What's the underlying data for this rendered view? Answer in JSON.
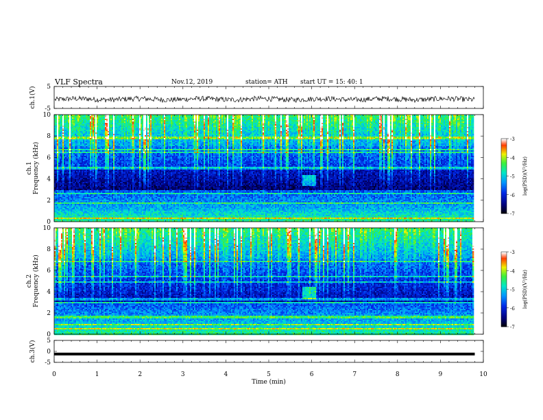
{
  "header": {
    "title": "VLF  Spectra",
    "date": "Nov.12, 2019",
    "station": "station= ATH",
    "start": "start  UT  =   15: 40: 1"
  },
  "chart_data": [
    {
      "type": "line",
      "panel": "ch1-waveform",
      "ylabel": "ch.1(V)",
      "ylim": [
        -5,
        5
      ],
      "yticks": [
        "5",
        "-5"
      ],
      "xlim": [
        0,
        10
      ],
      "series": [
        {
          "values_description_free": true,
          "mean": -0.8,
          "amplitude": 1.2
        }
      ]
    },
    {
      "type": "heatmap",
      "panel": "ch1-spectrogram",
      "ylabel": "ch.1\nFrequency  (kHz)",
      "ylim": [
        0,
        10
      ],
      "yticks": [
        "0",
        "2",
        "4",
        "6",
        "8",
        "10"
      ],
      "xlim": [
        0,
        10
      ],
      "data_extent_min": 9.8,
      "colorbar": {
        "label": "log(PSD)(V²/Hz)",
        "range": [
          -7,
          -3
        ],
        "ticks": [
          "-3",
          "-4",
          "-5",
          "-6",
          "-7"
        ]
      }
    },
    {
      "type": "heatmap",
      "panel": "ch2-spectrogram",
      "ylabel": "ch.2\nFrequency  (kHz)",
      "ylim": [
        0,
        10
      ],
      "yticks": [
        "0",
        "2",
        "4",
        "6",
        "8",
        "10"
      ],
      "xlim": [
        0,
        10
      ],
      "data_extent_min": 9.8,
      "colorbar": {
        "label": "log(PSD)(V²/Hz)",
        "range": [
          -7,
          -3
        ],
        "ticks": [
          "-3",
          "-4",
          "-5",
          "-6",
          "-7"
        ]
      }
    },
    {
      "type": "line",
      "panel": "ch3-waveform",
      "ylabel": "ch.3(V)",
      "ylim": [
        -5,
        5
      ],
      "yticks": [
        "5",
        "0",
        "-5"
      ],
      "xlim": [
        0,
        10
      ],
      "xlabel": "Time  (min)",
      "xticks": [
        "0",
        "1",
        "2",
        "3",
        "4",
        "5",
        "6",
        "7",
        "8",
        "9",
        "10"
      ],
      "series": [
        {
          "constant_value": -1.2
        }
      ]
    }
  ]
}
